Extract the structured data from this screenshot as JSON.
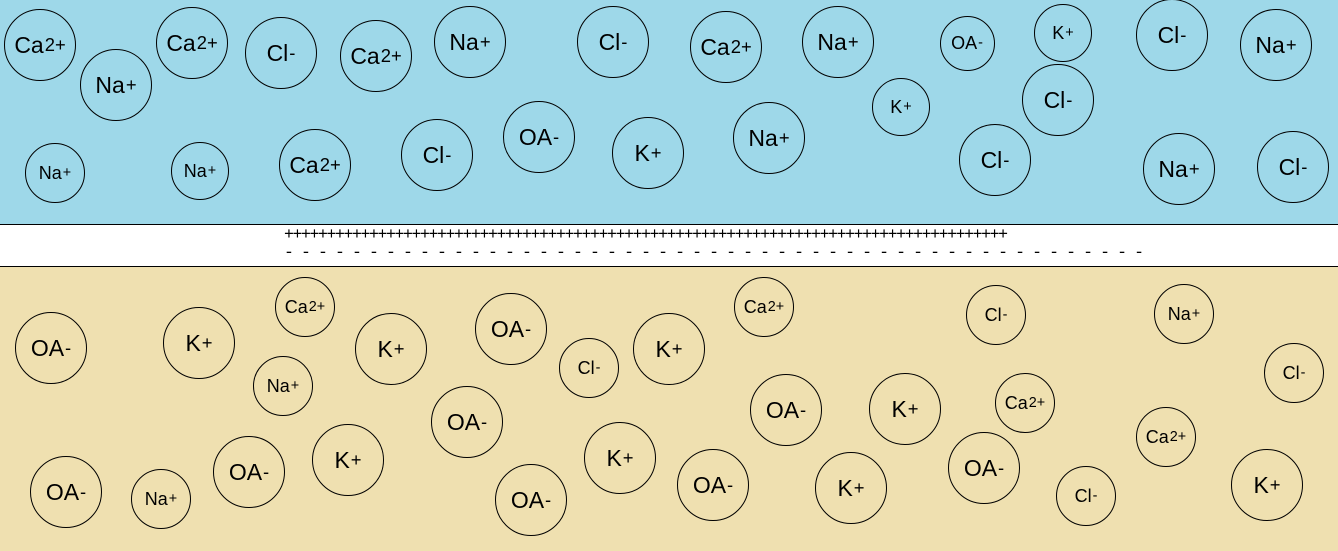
{
  "colors": {
    "outside_bg": "#9ed8e9",
    "inside_bg": "#efe0b0",
    "membrane_bg": "#ffffff"
  },
  "membrane": {
    "plus_charges": "+++++++++++++++++++++++++++++++++++++++++++++++++++++++++++++++++++++++++++++++++++++",
    "minus_charges": "- - - - - - - - - - - - - - - - - - - - - - - - - - - - - - - - - - - - - - - - - - - - - - - - - - - - - - - - - - - - - - - - - - - - - - - - - - -"
  },
  "outside_ions": [
    {
      "s": "Ca",
      "c": "2+"
    },
    {
      "s": "Na",
      "c": "+"
    },
    {
      "s": "Ca",
      "c": "2+"
    },
    {
      "s": "Cl",
      "c": "-"
    },
    {
      "s": "Ca",
      "c": "2+"
    },
    {
      "s": "Na",
      "c": "+"
    },
    {
      "s": "Cl",
      "c": "-"
    },
    {
      "s": "Ca",
      "c": "2+"
    },
    {
      "s": "Na",
      "c": "+"
    },
    {
      "s": "OA",
      "c": "-"
    },
    {
      "s": "K",
      "c": "+"
    },
    {
      "s": "Cl",
      "c": "-"
    },
    {
      "s": "Na",
      "c": "+"
    },
    {
      "s": "K",
      "c": "+"
    },
    {
      "s": "Cl",
      "c": "-"
    },
    {
      "s": "OA",
      "c": "-"
    },
    {
      "s": "K",
      "c": "+"
    },
    {
      "s": "Na",
      "c": "+"
    },
    {
      "s": "Cl",
      "c": "-"
    },
    {
      "s": "Na",
      "c": "+"
    },
    {
      "s": "Na",
      "c": "+"
    },
    {
      "s": "Ca",
      "c": "2+"
    },
    {
      "s": "Cl",
      "c": "-"
    },
    {
      "s": "Na",
      "c": "+"
    },
    {
      "s": "Cl",
      "c": "-"
    }
  ],
  "inside_ions": [
    {
      "s": "OA",
      "c": "-"
    },
    {
      "s": "K",
      "c": "+"
    },
    {
      "s": "Ca",
      "c": "2+"
    },
    {
      "s": "K",
      "c": "+"
    },
    {
      "s": "OA",
      "c": "-"
    },
    {
      "s": "Na",
      "c": "+"
    },
    {
      "s": "Cl",
      "c": "-"
    },
    {
      "s": "K",
      "c": "+"
    },
    {
      "s": "Ca",
      "c": "2+"
    },
    {
      "s": "Cl",
      "c": "-"
    },
    {
      "s": "Na",
      "c": "+"
    },
    {
      "s": "Cl",
      "c": "-"
    },
    {
      "s": "OA",
      "c": "-"
    },
    {
      "s": "OA",
      "c": "-"
    },
    {
      "s": "K",
      "c": "+"
    },
    {
      "s": "Ca",
      "c": "2+"
    },
    {
      "s": "OA",
      "c": "-"
    },
    {
      "s": "Na",
      "c": "+"
    },
    {
      "s": "OA",
      "c": "-"
    },
    {
      "s": "K",
      "c": "+"
    },
    {
      "s": "K",
      "c": "+"
    },
    {
      "s": "OA",
      "c": "-"
    },
    {
      "s": "OA",
      "c": "-"
    },
    {
      "s": "K",
      "c": "+"
    },
    {
      "s": "OA",
      "c": "-"
    },
    {
      "s": "Cl",
      "c": "-"
    },
    {
      "s": "Ca",
      "c": "2+"
    },
    {
      "s": "K",
      "c": "+"
    }
  ]
}
